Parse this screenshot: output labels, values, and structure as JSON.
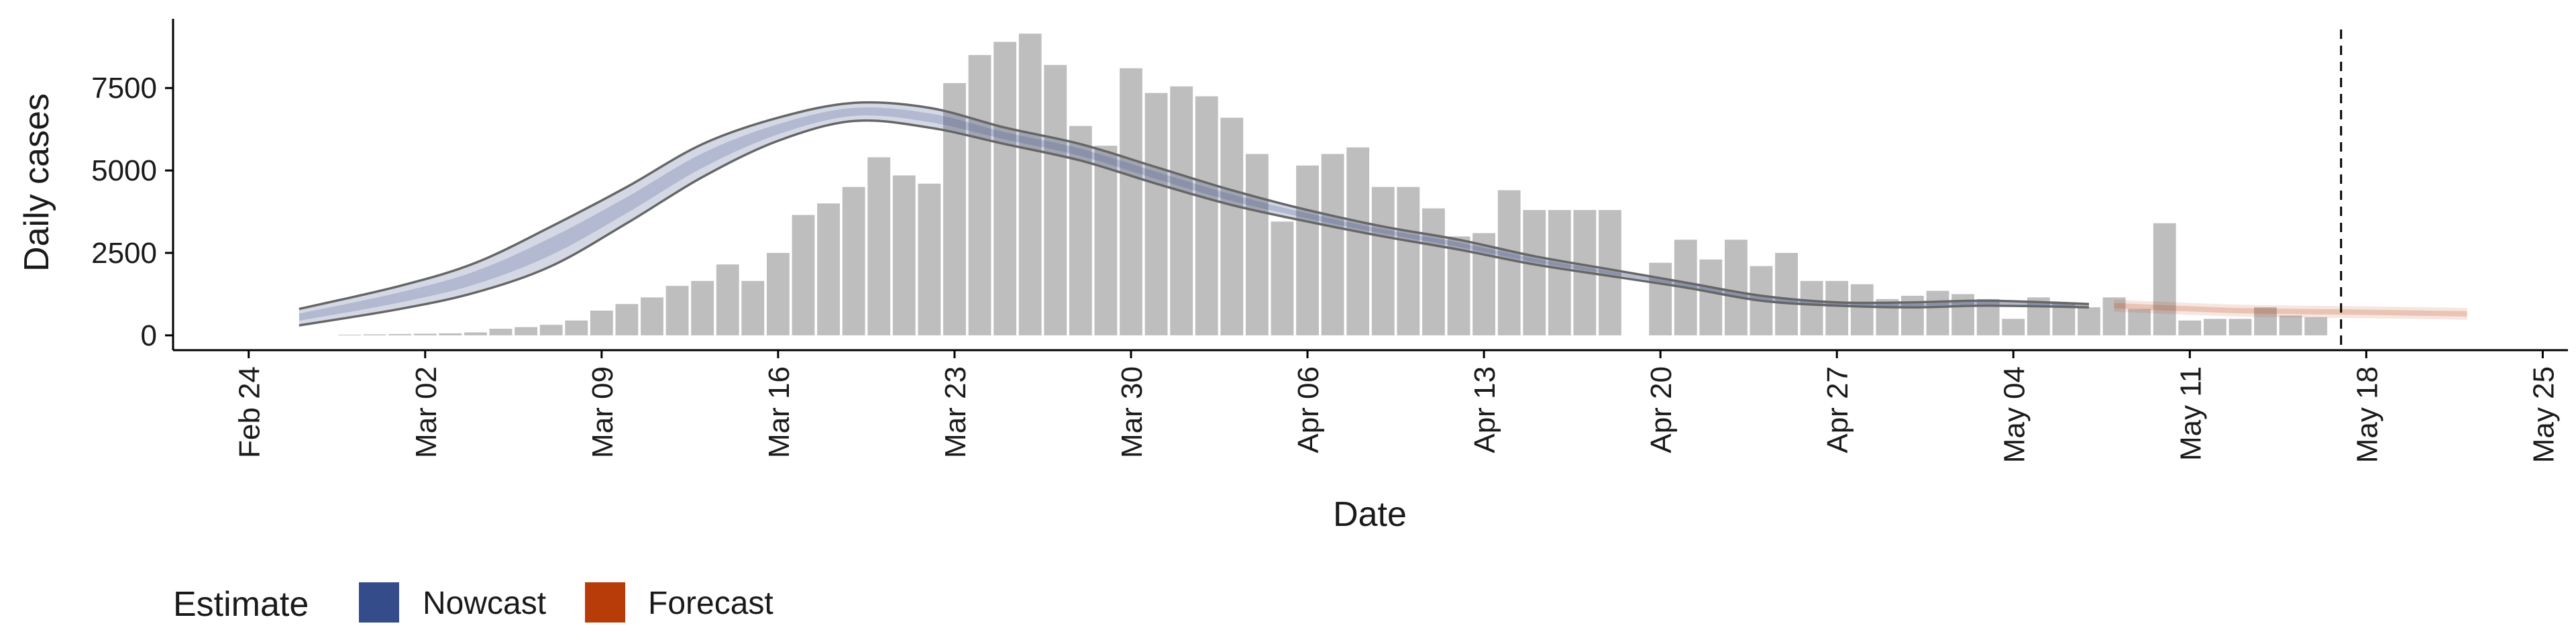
{
  "chart_data": {
    "type": "bar",
    "title": "",
    "xlabel": "Date",
    "ylabel": "Daily cases",
    "x_ticks": [
      "Feb 24",
      "Mar 02",
      "Mar 09",
      "Mar 16",
      "Mar 23",
      "Mar 30",
      "Apr 06",
      "Apr 13",
      "Apr 20",
      "Apr 27",
      "May 04",
      "May 11",
      "May 18",
      "May 25"
    ],
    "y_ticks": [
      0,
      2500,
      5000,
      7500
    ],
    "xlim": [
      "2020-02-21",
      "2020-05-26"
    ],
    "ylim": [
      -450,
      9600
    ],
    "grid": false,
    "reference_line": {
      "date": "2020-05-17",
      "style": "dashed"
    },
    "bars": {
      "start_date": "2020-02-28",
      "values": [
        20,
        30,
        40,
        50,
        60,
        90,
        200,
        250,
        320,
        450,
        750,
        950,
        1150,
        1500,
        1650,
        2150,
        1650,
        2500,
        3650,
        4000,
        4500,
        5400,
        4850,
        4600,
        7650,
        8500,
        8900,
        9150,
        8200,
        6350,
        5750,
        8100,
        7350,
        7550,
        7250,
        6600,
        5500,
        3450,
        5150,
        5500,
        5700,
        4500,
        4500,
        3850,
        3000,
        3100,
        4400,
        3800,
        3800,
        3800,
        3800,
        null,
        2200,
        2900,
        2300,
        2900,
        2100,
        2500,
        1650,
        1650,
        1550,
        1100,
        1200,
        1350,
        1250,
        1100,
        500,
        1150,
        1000,
        850,
        1150,
        800,
        3400,
        450,
        500,
        500,
        850,
        600,
        550
      ],
      "color": "#bebebe"
    },
    "series": [
      {
        "name": "Nowcast",
        "color": "#3a4d8a",
        "dates": [
          "2020-02-26",
          "2020-03-01",
          "2020-03-04",
          "2020-03-07",
          "2020-03-10",
          "2020-03-13",
          "2020-03-16",
          "2020-03-19",
          "2020-03-22",
          "2020-03-25",
          "2020-03-28",
          "2020-03-31",
          "2020-04-03",
          "2020-04-06",
          "2020-04-09",
          "2020-04-12",
          "2020-04-15",
          "2020-04-18",
          "2020-04-21",
          "2020-04-24",
          "2020-04-27",
          "2020-04-30",
          "2020-05-03",
          "2020-05-07"
        ],
        "upper": [
          800,
          1500,
          2200,
          3300,
          4500,
          5800,
          6600,
          7050,
          6900,
          6300,
          5800,
          5100,
          4400,
          3800,
          3300,
          2900,
          2400,
          2000,
          1600,
          1200,
          1000,
          1000,
          1050,
          950
        ],
        "lower": [
          300,
          800,
          1300,
          2100,
          3400,
          4800,
          5900,
          6500,
          6300,
          5800,
          5300,
          4600,
          3950,
          3450,
          3000,
          2600,
          2150,
          1800,
          1450,
          1050,
          900,
          850,
          900,
          850
        ]
      },
      {
        "name": "Forecast",
        "color": "#b83c0a",
        "dates": [
          "2020-05-08",
          "2020-05-13",
          "2020-05-18",
          "2020-05-22"
        ],
        "values": [
          900,
          750,
          700,
          650
        ]
      }
    ],
    "legend": {
      "title": "Estimate",
      "position": "bottom-left",
      "items": [
        "Nowcast",
        "Forecast"
      ]
    }
  }
}
